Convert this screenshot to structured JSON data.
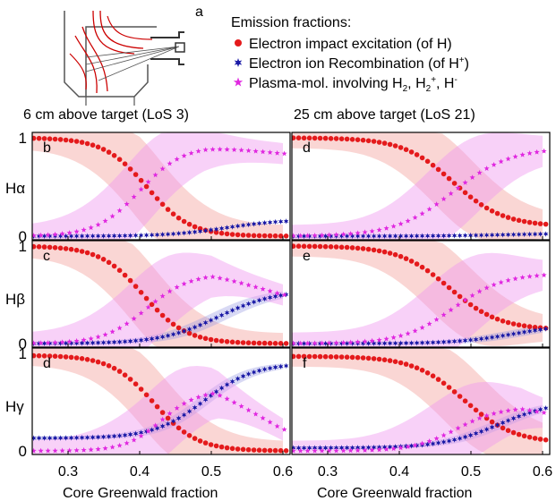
{
  "figure": {
    "inset_label": "a",
    "legend": {
      "heading": "Emission fractions:",
      "entries": [
        {
          "text": "Electron impact excitation (of H)",
          "sup": "",
          "tail": ")",
          "color": "#e41a1c",
          "marker": "dot"
        },
        {
          "text": "Electron ion Recombination (of H",
          "sup": "+",
          "tail": ")",
          "color": "#1a1aa6",
          "marker": "star6"
        },
        {
          "text": "Plasma-mol. involving H",
          "sub": "2",
          "text2": ", H",
          "sub2": "2",
          "sup2": "+",
          "text3": ", H",
          "sup3": "-",
          "color": "#e028e0",
          "marker": "star5"
        }
      ]
    },
    "column_titles": [
      "6 cm above target (LoS 3)",
      "25 cm above target (LoS 21)"
    ],
    "row_labels": [
      "Hα",
      "Hβ",
      "Hγ"
    ],
    "x_axis_label": "Core Greenwald fraction"
  },
  "chart_data": [
    {
      "type": "scatter",
      "panel": "b",
      "row": "Hα",
      "column": "6 cm above target (LoS 3)",
      "xlim": [
        0.25,
        0.61
      ],
      "ylim": [
        0,
        1
      ],
      "xticks": [
        0.3,
        0.4,
        0.5,
        0.6
      ],
      "yticks": [
        0,
        1
      ],
      "series": [
        {
          "name": "Electron impact excitation (of H)",
          "curve": {
            "kind": "sigmoid",
            "from": 1.0,
            "to": 0.0,
            "x0": 0.41,
            "w": 0.03
          },
          "band": 0.32
        },
        {
          "name": "Electron ion Recombination (of H+)",
          "curve": {
            "kind": "sigmoid",
            "from": 0.0,
            "to": 0.17,
            "x0": 0.52,
            "w": 0.04
          },
          "band": 0.0
        },
        {
          "name": "Plasma-mol. involving H2, H2+, H-",
          "curve": {
            "kind": "rise-dip",
            "from": 0.0,
            "to": 0.92,
            "x0": 0.4,
            "w": 0.03,
            "dip": 0.08
          },
          "band": 0.3
        }
      ]
    },
    {
      "type": "scatter",
      "panel": "d",
      "row": "Hα",
      "column": "25 cm above target (LoS 21)",
      "xlim": [
        0.25,
        0.61
      ],
      "ylim": [
        0,
        1
      ],
      "xticks": [
        0.3,
        0.4,
        0.5,
        0.6
      ],
      "yticks": [
        0,
        1
      ],
      "series": [
        {
          "name": "Electron impact excitation (of H)",
          "curve": {
            "kind": "sigmoid",
            "from": 1.0,
            "to": 0.1,
            "x0": 0.475,
            "w": 0.035
          },
          "band": 0.3
        },
        {
          "name": "Electron ion Recombination (of H+)",
          "curve": {
            "kind": "sigmoid",
            "from": 0.0,
            "to": 0.03,
            "x0": 0.55,
            "w": 0.05
          },
          "band": 0.0
        },
        {
          "name": "Plasma-mol. involving H2, H2+, H-",
          "curve": {
            "kind": "sigmoid",
            "from": 0.0,
            "to": 0.9,
            "x0": 0.475,
            "w": 0.04
          },
          "band": 0.32
        }
      ]
    },
    {
      "type": "scatter",
      "panel": "c",
      "row": "Hβ",
      "column": "6 cm above target (LoS 3)",
      "xlim": [
        0.25,
        0.61
      ],
      "ylim": [
        0,
        1
      ],
      "xticks": [
        0.3,
        0.4,
        0.5,
        0.6
      ],
      "yticks": [
        0,
        1
      ],
      "series": [
        {
          "name": "Electron impact excitation (of H)",
          "curve": {
            "kind": "sigmoid",
            "from": 1.0,
            "to": 0.0,
            "x0": 0.405,
            "w": 0.03
          },
          "band": 0.3
        },
        {
          "name": "Electron ion Recombination (of H+)",
          "curve": {
            "kind": "sigmoid",
            "from": 0.0,
            "to": 0.55,
            "x0": 0.51,
            "w": 0.04
          },
          "band": 0.05
        },
        {
          "name": "Plasma-mol. involving H2, H2+, H-",
          "curve": {
            "kind": "rise-dip",
            "from": 0.0,
            "to": 0.72,
            "x0": 0.41,
            "w": 0.03,
            "dip": 0.22
          },
          "band": 0.3
        }
      ]
    },
    {
      "type": "scatter",
      "panel": "e",
      "row": "Hβ",
      "column": "25 cm above target (LoS 21)",
      "xlim": [
        0.25,
        0.61
      ],
      "ylim": [
        0,
        1
      ],
      "xticks": [
        0.3,
        0.4,
        0.5,
        0.6
      ],
      "yticks": [
        0,
        1
      ],
      "series": [
        {
          "name": "Electron impact excitation (of H)",
          "curve": {
            "kind": "sigmoid",
            "from": 1.0,
            "to": 0.14,
            "x0": 0.47,
            "w": 0.035
          },
          "band": 0.3
        },
        {
          "name": "Electron ion Recombination (of H+)",
          "curve": {
            "kind": "sigmoid",
            "from": 0.0,
            "to": 0.2,
            "x0": 0.56,
            "w": 0.04
          },
          "band": 0.03
        },
        {
          "name": "Plasma-mol. involving H2, H2+, H-",
          "curve": {
            "kind": "sigmoid",
            "from": 0.0,
            "to": 0.72,
            "x0": 0.475,
            "w": 0.035
          },
          "band": 0.32
        }
      ]
    },
    {
      "type": "scatter",
      "panel": "d",
      "row": "Hγ",
      "column": "6 cm above target (LoS 3)",
      "xlim": [
        0.25,
        0.61
      ],
      "ylim": [
        0,
        1
      ],
      "xticks": [
        0.3,
        0.4,
        0.5,
        0.6
      ],
      "yticks": [
        0,
        1
      ],
      "series": [
        {
          "name": "Electron impact excitation (of H)",
          "curve": {
            "kind": "sigmoid",
            "from": 0.98,
            "to": 0.0,
            "x0": 0.42,
            "w": 0.03
          },
          "band": 0.28
        },
        {
          "name": "Electron ion Recombination (of H+)",
          "curve": {
            "kind": "sigmoid",
            "from": 0.13,
            "to": 0.9,
            "x0": 0.49,
            "w": 0.035
          },
          "band": 0.05
        },
        {
          "name": "Plasma-mol. involving H2, H2+, H-",
          "curve": {
            "kind": "rise-dip",
            "from": 0.0,
            "to": 0.62,
            "x0": 0.43,
            "w": 0.025,
            "dip": 0.4
          },
          "band": 0.3
        }
      ]
    },
    {
      "type": "scatter",
      "panel": "f",
      "row": "Hγ",
      "column": "25 cm above target (LoS 21)",
      "xlim": [
        0.25,
        0.61
      ],
      "ylim": [
        0,
        1
      ],
      "xticks": [
        0.3,
        0.4,
        0.5,
        0.6
      ],
      "yticks": [
        0,
        1
      ],
      "series": [
        {
          "name": "Electron impact excitation (of H)",
          "curve": {
            "kind": "sigmoid",
            "from": 0.97,
            "to": 0.08,
            "x0": 0.49,
            "w": 0.035
          },
          "band": 0.3
        },
        {
          "name": "Electron ion Recombination (of H+)",
          "curve": {
            "kind": "sigmoid",
            "from": 0.03,
            "to": 0.52,
            "x0": 0.54,
            "w": 0.04
          },
          "band": 0.04
        },
        {
          "name": "Plasma-mol. involving H2, H2+, H-",
          "curve": {
            "kind": "rise-dip",
            "from": 0.0,
            "to": 0.45,
            "x0": 0.48,
            "w": 0.03,
            "dip": 0.05
          },
          "band": 0.3
        }
      ]
    }
  ]
}
